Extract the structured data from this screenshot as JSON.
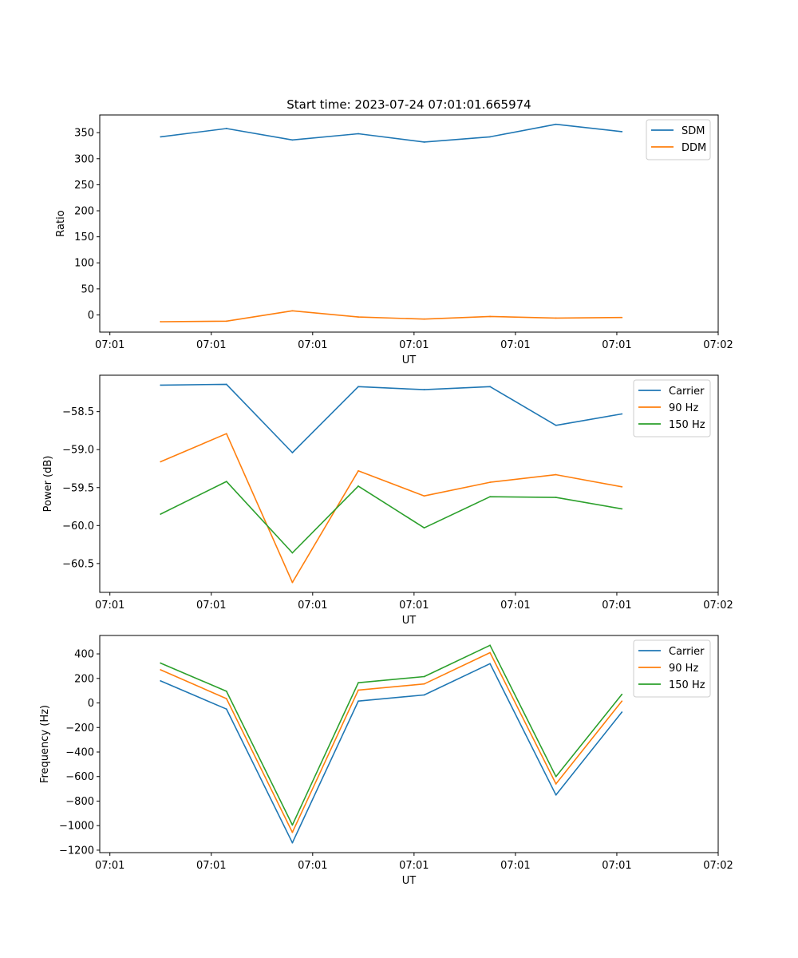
{
  "title": "Start time: 2023-07-24 07:01:01.665974",
  "chart_data": [
    {
      "type": "line",
      "title": "Start time: 2023-07-24 07:01:01.665974",
      "xlabel": "UT",
      "ylabel": "Ratio",
      "x": [
        1.5,
        2.15,
        2.8,
        3.45,
        4.1,
        4.75,
        5.4,
        6.05
      ],
      "xlim": [
        0.9,
        7.0
      ],
      "xticks": [
        1,
        2,
        3,
        4,
        5,
        6,
        7
      ],
      "xticklabels": [
        "07:01",
        "07:01",
        "07:01",
        "07:01",
        "07:01",
        "07:01",
        "07:02"
      ],
      "ylim": [
        -33,
        384
      ],
      "yticks": [
        0,
        50,
        100,
        150,
        200,
        250,
        300,
        350
      ],
      "yticklabels": [
        "0",
        "50",
        "100",
        "150",
        "200",
        "250",
        "300",
        "350"
      ],
      "legend": "top-right",
      "series": [
        {
          "name": "SDM",
          "color": "#1f77b4",
          "values": [
            342,
            358,
            336,
            348,
            332,
            342,
            366,
            352
          ]
        },
        {
          "name": "DDM",
          "color": "#ff7f0e",
          "values": [
            -13,
            -12,
            8,
            -4,
            -8,
            -3,
            -6,
            -5
          ]
        }
      ]
    },
    {
      "type": "line",
      "xlabel": "UT",
      "ylabel": "Power (dB)",
      "x": [
        1.5,
        2.15,
        2.8,
        3.45,
        4.1,
        4.75,
        5.4,
        6.05
      ],
      "xlim": [
        0.9,
        7.0
      ],
      "xticks": [
        1,
        2,
        3,
        4,
        5,
        6,
        7
      ],
      "xticklabels": [
        "07:01",
        "07:01",
        "07:01",
        "07:01",
        "07:01",
        "07:01",
        "07:02"
      ],
      "ylim": [
        -60.88,
        -58.02
      ],
      "yticks": [
        -60.5,
        -60.0,
        -59.5,
        -59.0,
        -58.5
      ],
      "yticklabels": [
        "−60.5",
        "−60.0",
        "−59.5",
        "−59.0",
        "−58.5"
      ],
      "legend": "top-right",
      "series": [
        {
          "name": "Carrier",
          "color": "#1f77b4",
          "values": [
            -58.15,
            -58.14,
            -59.04,
            -58.17,
            -58.21,
            -58.17,
            -58.68,
            -58.53
          ]
        },
        {
          "name": "90 Hz",
          "color": "#ff7f0e",
          "values": [
            -59.16,
            -58.79,
            -60.75,
            -59.28,
            -59.61,
            -59.43,
            -59.33,
            -59.49
          ]
        },
        {
          "name": "150 Hz",
          "color": "#2ca02c",
          "values": [
            -59.85,
            -59.42,
            -60.36,
            -59.48,
            -60.03,
            -59.62,
            -59.63,
            -59.78
          ]
        }
      ]
    },
    {
      "type": "line",
      "xlabel": "UT",
      "ylabel": "Frequency (Hz)",
      "x": [
        1.5,
        2.15,
        2.8,
        3.45,
        4.1,
        4.75,
        5.4,
        6.05
      ],
      "xlim": [
        0.9,
        7.0
      ],
      "xticks": [
        1,
        2,
        3,
        4,
        5,
        6,
        7
      ],
      "xticklabels": [
        "07:01",
        "07:01",
        "07:01",
        "07:01",
        "07:01",
        "07:01",
        "07:02"
      ],
      "ylim": [
        -1220,
        550
      ],
      "yticks": [
        -1200,
        -1000,
        -800,
        -600,
        -400,
        -200,
        0,
        200,
        400
      ],
      "yticklabels": [
        "−1200",
        "−1000",
        "−800",
        "−600",
        "−400",
        "−200",
        "0",
        "200",
        "400"
      ],
      "legend": "top-right",
      "series": [
        {
          "name": "Carrier",
          "color": "#1f77b4",
          "values": [
            180,
            -50,
            -1140,
            15,
            65,
            320,
            -750,
            -75
          ]
        },
        {
          "name": "90 Hz",
          "color": "#ff7f0e",
          "values": [
            270,
            35,
            -1055,
            105,
            155,
            410,
            -660,
            15
          ]
        },
        {
          "name": "150 Hz",
          "color": "#2ca02c",
          "values": [
            325,
            95,
            -995,
            165,
            215,
            470,
            -600,
            70
          ]
        }
      ]
    }
  ]
}
